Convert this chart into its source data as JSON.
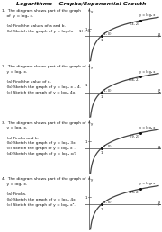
{
  "title": "Logarithms – Graphs/Exponential Growth",
  "questions": [
    {
      "number": "1.",
      "lines": [
        "1.  The diagram shows part of the graph",
        "    of  y = log₂ x.",
        "",
        "    (a) Find the values of a and b.",
        "    (b) Sketch the graph of y = log₂(x + 1) – 3."
      ],
      "pt1_label": "(1, 0)",
      "pt2_label": "(4, 2)",
      "curve_label": "y = log₂ x"
    },
    {
      "number": "2.",
      "lines": [
        "2.  The diagram shows part of the graph of",
        "    y = log₆ x.",
        "",
        "    (a) Find the value of a.",
        "    (b) Sketch the graph of y = log₆ x – 4.",
        "    (c) Sketch the graph of y = log₆ 4x."
      ],
      "pt1_label": "(1, 0)",
      "pt2_label": "(36, 2)",
      "curve_label": "y = log₆ x"
    },
    {
      "number": "3.",
      "lines": [
        "3.  The diagram shows part of the graph of",
        "    y = log₃ x.",
        "",
        "    (a) Find a and b.",
        "    (b) Sketch the graph of y = log₃ 3x.",
        "    (c) Sketch the graph of y = log₃ x².",
        "    (d) Sketch the graph of y = log₃ x/3"
      ],
      "pt1_label": "(1, 0)",
      "pt2_label": "(9, 2)",
      "curve_label": "y = log₃ x"
    },
    {
      "number": "4.",
      "lines": [
        "4.  The diagram shows part of the graph of",
        "    y = log₅ x.",
        "",
        "    (a) Find a.",
        "    (b) Sketch the graph of y = log₅ 4x.",
        "    (c) Sketch the graph of y = log₅ x²."
      ],
      "pt1_label": "(1, 0)",
      "pt2_label": "(25, 2)",
      "curve_label": "y = log₅ x"
    }
  ],
  "bg_color": "#ffffff",
  "text_color": "#111111",
  "curve_color": "#444444",
  "axis_color": "#444444",
  "title_fontsize": 4.5,
  "question_fontsize": 3.2,
  "graph_label_fontsize": 2.8
}
